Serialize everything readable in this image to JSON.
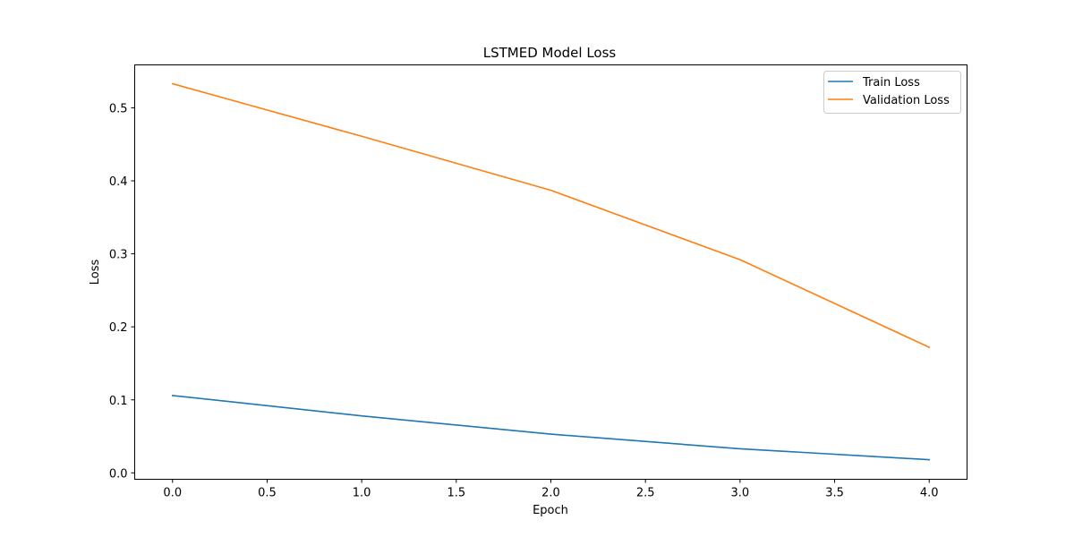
{
  "chart_data": {
    "type": "line",
    "title": "LSTMED Model Loss",
    "xlabel": "Epoch",
    "ylabel": "Loss",
    "xlim": [
      -0.2,
      4.2
    ],
    "ylim": [
      -0.0088,
      0.5588
    ],
    "x_ticks": [
      0.0,
      0.5,
      1.0,
      1.5,
      2.0,
      2.5,
      3.0,
      3.5,
      4.0
    ],
    "x_tick_labels": [
      "0.0",
      "0.5",
      "1.0",
      "1.5",
      "2.0",
      "2.5",
      "3.0",
      "3.5",
      "4.0"
    ],
    "y_ticks": [
      0.0,
      0.1,
      0.2,
      0.3,
      0.4,
      0.5
    ],
    "y_tick_labels": [
      "0.0",
      "0.1",
      "0.2",
      "0.3",
      "0.4",
      "0.5"
    ],
    "grid": false,
    "legend_position": "top-right",
    "x": [
      0,
      1,
      2,
      3,
      4
    ],
    "series": [
      {
        "name": "Train Loss",
        "color": "#1f77b4",
        "values": [
          0.106,
          0.078,
          0.053,
          0.033,
          0.018
        ]
      },
      {
        "name": "Validation Loss",
        "color": "#ff7f0e",
        "values": [
          0.533,
          0.461,
          0.387,
          0.292,
          0.172
        ]
      }
    ]
  }
}
